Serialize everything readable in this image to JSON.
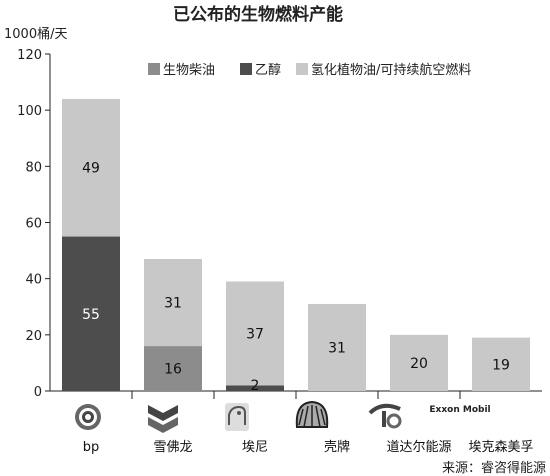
{
  "chart_data": {
    "type": "bar",
    "stacked": true,
    "title": "已公布的生物燃料产能",
    "ylabel": "1000桶/天",
    "ylim": [
      0,
      120
    ],
    "yticks": [
      0,
      20,
      40,
      60,
      80,
      100,
      120
    ],
    "categories": [
      "bp",
      "雪佛龙",
      "埃尼",
      "壳牌",
      "道达尔能源",
      "埃克森美孚"
    ],
    "series": [
      {
        "name": "生物柴油",
        "color": "#8c8c8c",
        "values": [
          0,
          16,
          0,
          0,
          0,
          0
        ]
      },
      {
        "name": "乙醇",
        "color": "#4d4d4d",
        "values": [
          55,
          0,
          2,
          0,
          0,
          0
        ]
      },
      {
        "name": "氢化植物油/可持续航空燃料",
        "color": "#c8c8c8",
        "values": [
          49,
          31,
          37,
          31,
          20,
          19
        ]
      }
    ],
    "data_labels": [
      [
        null,
        16,
        null,
        null,
        null,
        null
      ],
      [
        55,
        null,
        2,
        null,
        null,
        null
      ],
      [
        49,
        31,
        37,
        31,
        20,
        19
      ]
    ],
    "legend_position": "top-right",
    "grid": false
  },
  "logos": [
    {
      "name": "bp-logo-icon",
      "text": ""
    },
    {
      "name": "chevron-logo-icon",
      "text": ""
    },
    {
      "name": "eni-logo-icon",
      "text": ""
    },
    {
      "name": "shell-logo-icon",
      "text": ""
    },
    {
      "name": "totalenergies-logo-icon",
      "text": ""
    },
    {
      "name": "exxonmobil-logo-icon",
      "text": "Exxon Mobil"
    }
  ],
  "source": "来源：睿咨得能源"
}
